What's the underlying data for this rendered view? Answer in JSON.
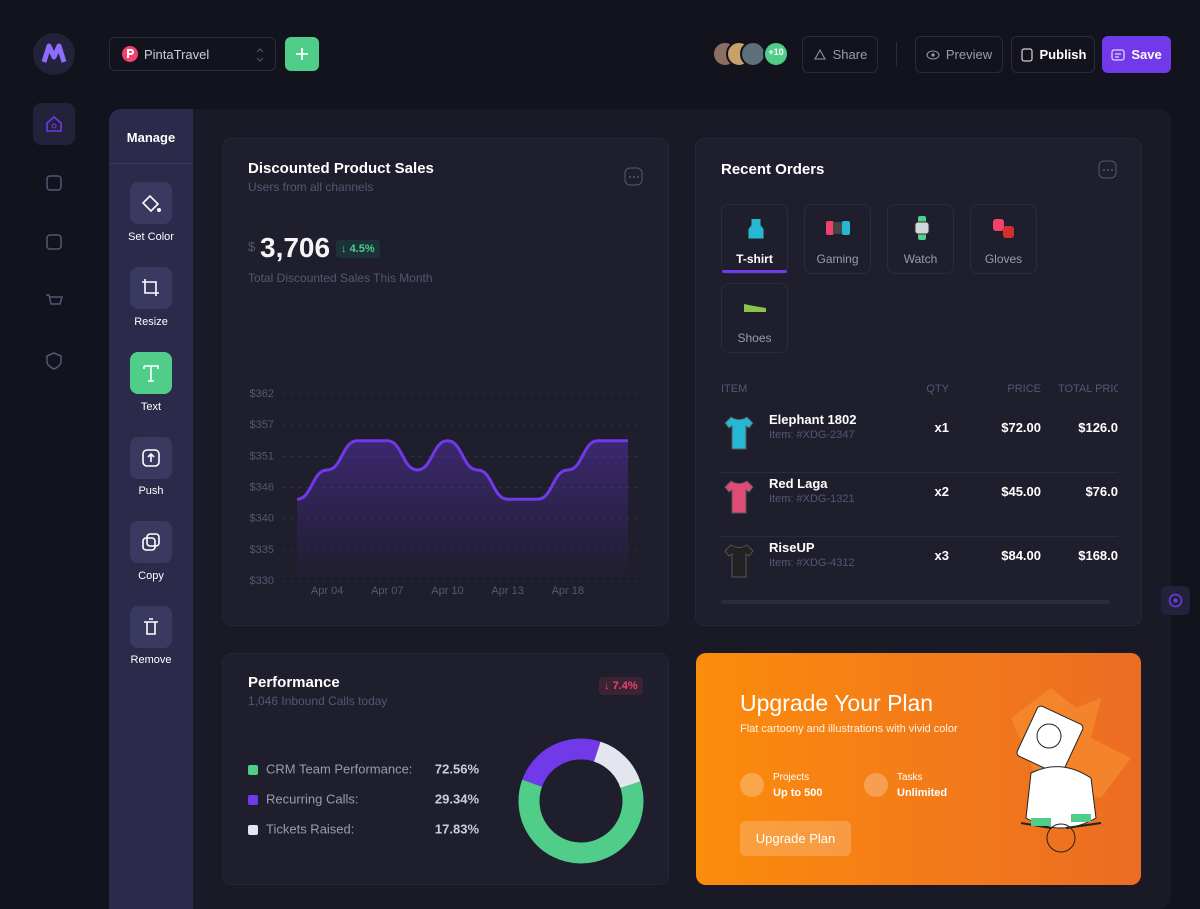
{
  "project": {
    "name": "PintaTravel"
  },
  "toolbar": {
    "more_collaborators": "+10",
    "share": "Share",
    "preview": "Preview",
    "publish": "Publish",
    "save": "Save"
  },
  "manage": {
    "title": "Manage",
    "tools": [
      "Set Color",
      "Resize",
      "Text",
      "Push",
      "Copy",
      "Remove"
    ]
  },
  "sales": {
    "title": "Discounted Product Sales",
    "subtitle": "Users from all channels",
    "currency": "$",
    "total": "3,706",
    "change": "4.5%",
    "caption": "Total Discounted Sales This Month",
    "chart": {
      "type": "line",
      "categories": [
        null,
        "Apr 04",
        null,
        "Apr 07",
        null,
        "Apr 10",
        null,
        "Apr 13",
        null,
        "Apr 18",
        null,
        null
      ],
      "series": [
        {
          "color": "#7239ea",
          "values": [
            344,
            349,
            354,
            354,
            349,
            354,
            349,
            344,
            344,
            349,
            354,
            354
          ]
        }
      ],
      "ylim": [
        330,
        362
      ],
      "yticks": [
        {
          "value": 330,
          "label": "$330"
        },
        {
          "value": 335.3,
          "label": "$335"
        },
        {
          "value": 340.7,
          "label": "$340"
        },
        {
          "value": 346,
          "label": "$346"
        },
        {
          "value": 351.3,
          "label": "$351"
        },
        {
          "value": 356.7,
          "label": "$357"
        },
        {
          "value": 362,
          "label": "$362"
        }
      ],
      "grid": true
    }
  },
  "orders": {
    "title": "Recent Orders",
    "tabs": [
      "T-shirt",
      "Gaming",
      "Watch",
      "Gloves",
      "Shoes"
    ],
    "columns": [
      "ITEM",
      "QTY",
      "PRICE",
      "TOTAL PRICE"
    ],
    "rows": [
      {
        "name": "Elephant 1802",
        "sku": "Item: #XDG-2347",
        "qty": "x1",
        "price": "$72.00",
        "total": "$126.0"
      },
      {
        "name": "Red Laga",
        "sku": "Item: #XDG-1321",
        "qty": "x2",
        "price": "$45.00",
        "total": "$76.0"
      },
      {
        "name": "RiseUP",
        "sku": "Item: #XDG-4312",
        "qty": "x3",
        "price": "$84.00",
        "total": "$168.0"
      }
    ]
  },
  "performance": {
    "title": "Performance",
    "subtitle": "1,046 Inbound Calls today",
    "change": "7.4%",
    "chart": {
      "type": "donut",
      "categories": [
        "CRM Team Performance:",
        "Recurring Calls:",
        "Tickets Raised:"
      ],
      "values": [
        72.56,
        29.34,
        17.83
      ],
      "value_labels": [
        "72.56%",
        "29.34%",
        "17.83%"
      ],
      "colors": [
        "#50cd89",
        "#7239ea",
        "#e4e6ef"
      ]
    }
  },
  "upgrade": {
    "title": "Upgrade Your Plan",
    "description": "Flat cartoony and illustrations with vivid color",
    "features": [
      {
        "label": "Projects",
        "value": "Up to 500"
      },
      {
        "label": "Tasks",
        "value": "Unlimited"
      }
    ],
    "button": "Upgrade Plan"
  }
}
